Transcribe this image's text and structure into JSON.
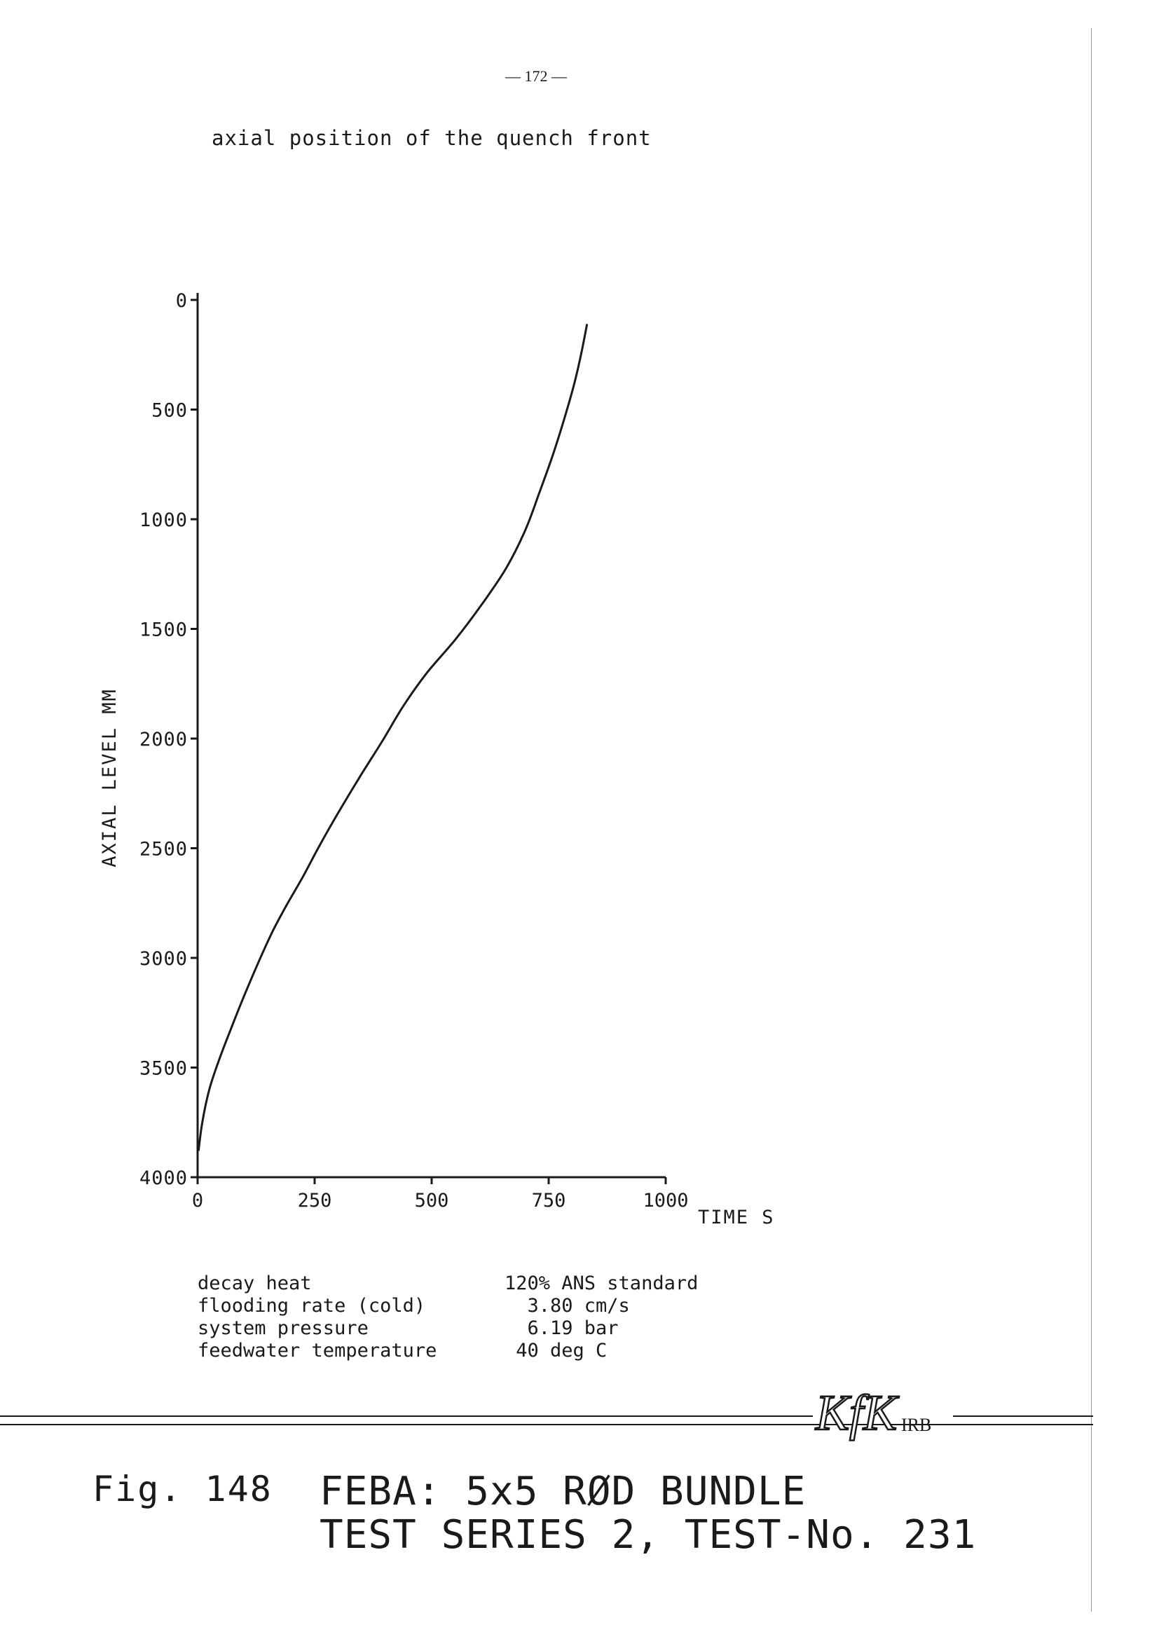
{
  "page": {
    "number": "— 172 —"
  },
  "chart_data": {
    "type": "line",
    "title": "axial position of the quench front",
    "xlabel": "TIME S",
    "ylabel": "AXIAL LEVEL MM",
    "xlim": [
      0,
      1000
    ],
    "ylim": [
      0,
      4000
    ],
    "y_inverted": true,
    "x_ticks": [
      0,
      250,
      500,
      750,
      1000
    ],
    "x_tick_labels": [
      "0",
      "250",
      "500",
      "750",
      "1000"
    ],
    "y_ticks": [
      0,
      500,
      1000,
      1500,
      2000,
      2500,
      3000,
      3500,
      4000
    ],
    "y_tick_labels": [
      "0",
      "500",
      "1000",
      "1500",
      "2000",
      "2500",
      "3000",
      "3500",
      "4000"
    ],
    "grid": false,
    "series": [
      {
        "x": [
          2,
          10,
          25,
          45,
          70,
          100,
          130,
          160,
          190,
          225,
          260,
          300,
          345,
          395,
          440,
          490,
          550,
          610,
          660,
          700,
          730,
          760,
          785,
          805,
          820,
          832
        ],
        "y": [
          3880,
          3750,
          3600,
          3470,
          3330,
          3170,
          3020,
          2880,
          2760,
          2630,
          2490,
          2340,
          2180,
          2010,
          1850,
          1700,
          1550,
          1380,
          1220,
          1050,
          880,
          700,
          530,
          380,
          240,
          110
        ]
      }
    ]
  },
  "parameters": [
    {
      "label": "decay heat",
      "value": "120% ANS standard"
    },
    {
      "label": "flooding rate (cold)",
      "value": "  3.80 cm/s"
    },
    {
      "label": "system pressure",
      "value": "  6.19 bar"
    },
    {
      "label": "feedwater temperature",
      "value": " 40 deg C"
    }
  ],
  "logo": {
    "text": "KfK",
    "suffix": "IRB"
  },
  "figure": {
    "label": "Fig. 148",
    "title_line1": "FEBA: 5x5 RØD BUNDLE",
    "title_line2": "TEST SERIES 2, TEST-No. 231"
  }
}
